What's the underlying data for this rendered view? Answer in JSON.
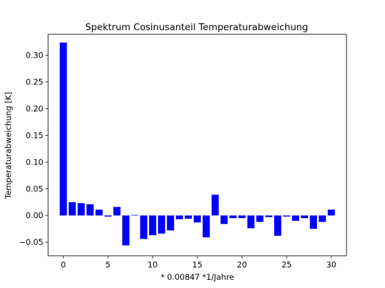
{
  "chart_data": {
    "type": "bar",
    "title": "Spektrum Cosinusanteil Temperaturabweichung",
    "xlabel": "* 0.00847  *1/Jahre",
    "ylabel": "Temperaturabweichung [K]",
    "xlim": [
      -1.7,
      31.7
    ],
    "ylim": [
      -0.0755,
      0.3395
    ],
    "bar_width": 0.8,
    "bar_color": "#0000ff",
    "grid": false,
    "xticks": [
      0,
      5,
      10,
      15,
      20,
      25,
      30
    ],
    "xtick_labels": [
      "0",
      "5",
      "10",
      "15",
      "20",
      "25",
      "30"
    ],
    "yticks": [
      -0.05,
      0.0,
      0.05,
      0.1,
      0.15,
      0.2,
      0.25,
      0.3
    ],
    "ytick_labels": [
      "−0.05",
      "0.00",
      "0.05",
      "0.10",
      "0.15",
      "0.20",
      "0.25",
      "0.30"
    ],
    "x": [
      0,
      1,
      2,
      3,
      4,
      5,
      6,
      7,
      8,
      9,
      10,
      11,
      12,
      13,
      14,
      15,
      16,
      17,
      18,
      19,
      20,
      21,
      22,
      23,
      24,
      25,
      26,
      27,
      28,
      29,
      30
    ],
    "values": [
      0.324,
      0.025,
      0.023,
      0.021,
      0.011,
      -0.002,
      0.016,
      -0.056,
      0.001,
      -0.044,
      -0.037,
      -0.034,
      -0.028,
      -0.007,
      -0.006,
      -0.013,
      -0.041,
      0.039,
      -0.016,
      -0.005,
      -0.005,
      -0.024,
      -0.012,
      -0.003,
      -0.038,
      -0.002,
      -0.01,
      -0.005,
      -0.025,
      -0.012,
      0.011
    ]
  }
}
